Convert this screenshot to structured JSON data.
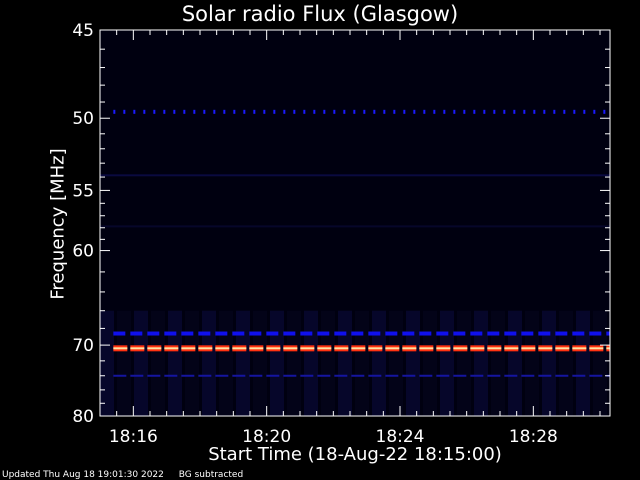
{
  "chart_data": {
    "type": "heatmap",
    "title": "Solar radio Flux (Glasgow)",
    "xlabel": "Start Time (18-Aug-22 18:15:00)",
    "ylabel": "Frequency [MHz]",
    "x_start_minutes": 0,
    "x_range_minutes": [
      0,
      15.3
    ],
    "x_ticks": [
      {
        "label": "18:16",
        "minute": 1.0
      },
      {
        "label": "18:20",
        "minute": 5.0
      },
      {
        "label": "18:24",
        "minute": 9.0
      },
      {
        "label": "18:28",
        "minute": 13.0
      }
    ],
    "y_scale": "reciprocal",
    "ylim": [
      45,
      80
    ],
    "y_ticks": [
      45,
      50,
      55,
      60,
      70,
      80
    ],
    "y_minor_ticks": [
      46,
      47,
      48,
      49,
      51,
      52,
      53,
      54,
      56,
      57,
      58,
      59,
      62,
      64,
      66,
      68,
      72,
      74,
      76,
      78
    ],
    "grid": false,
    "background_color": "#000010",
    "bands": [
      {
        "frequency_mhz": 49.6,
        "intensity": "faint",
        "color": "#1a1aff",
        "style": "dotted"
      },
      {
        "frequency_mhz": 68.6,
        "intensity": "medium",
        "color": "#1010ee",
        "style": "dashed"
      },
      {
        "frequency_mhz": 70.4,
        "intensity": "strong",
        "color": "#ff3010",
        "style": "dashed"
      },
      {
        "frequency_mhz": 74.0,
        "intensity": "faint",
        "color": "#1515a0",
        "style": "dashed"
      }
    ],
    "colors": {
      "axes": "#ffffff",
      "low": "#000010",
      "mid": "#0000ff",
      "high": "#ff2000"
    }
  },
  "footer": {
    "updated": "Updated Thu Aug 18 19:01:30 2022",
    "note": "BG subtracted"
  }
}
